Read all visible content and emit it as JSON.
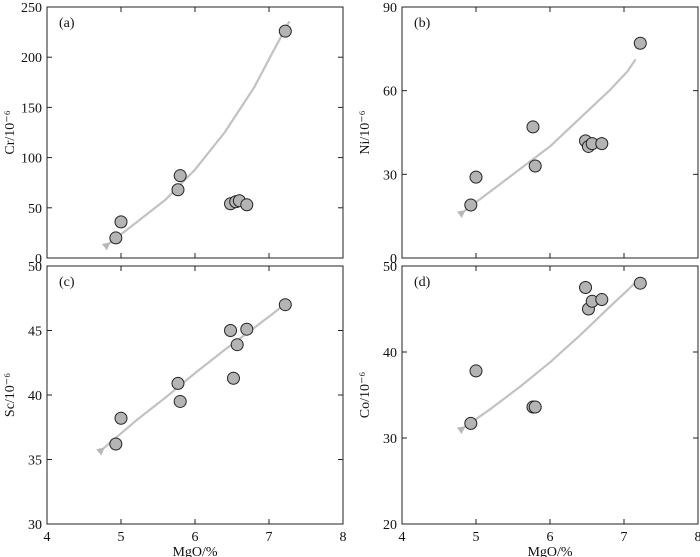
{
  "chart_data": [
    {
      "panel": "(a)",
      "type": "scatter",
      "xlabel": "",
      "ylabel": "Cr/10⁻⁶",
      "xlim": [
        4,
        8
      ],
      "ylim": [
        0,
        250
      ],
      "xticks": [],
      "yticks": [
        0,
        50,
        100,
        150,
        200,
        250
      ],
      "points": [
        {
          "x": 4.93,
          "y": 20
        },
        {
          "x": 5.0,
          "y": 36
        },
        {
          "x": 5.77,
          "y": 68
        },
        {
          "x": 5.8,
          "y": 82
        },
        {
          "x": 6.48,
          "y": 54
        },
        {
          "x": 6.55,
          "y": 56
        },
        {
          "x": 6.6,
          "y": 57
        },
        {
          "x": 6.7,
          "y": 53
        },
        {
          "x": 7.22,
          "y": 226
        }
      ],
      "trend": [
        [
          4.85,
          15
        ],
        [
          5.2,
          35
        ],
        [
          5.6,
          58
        ],
        [
          6.0,
          88
        ],
        [
          6.4,
          125
        ],
        [
          6.8,
          170
        ],
        [
          7.05,
          205
        ],
        [
          7.27,
          235
        ]
      ],
      "arrow": "start"
    },
    {
      "panel": "(b)",
      "type": "scatter",
      "xlabel": "",
      "ylabel": "Ni/10⁻⁶",
      "xlim": [
        4,
        8
      ],
      "ylim": [
        0,
        90
      ],
      "xticks": [],
      "yticks": [
        0,
        30,
        60,
        90
      ],
      "points": [
        {
          "x": 4.93,
          "y": 19
        },
        {
          "x": 5.0,
          "y": 29
        },
        {
          "x": 5.77,
          "y": 47
        },
        {
          "x": 5.8,
          "y": 33
        },
        {
          "x": 6.48,
          "y": 42
        },
        {
          "x": 6.52,
          "y": 40
        },
        {
          "x": 6.57,
          "y": 41
        },
        {
          "x": 6.7,
          "y": 41
        },
        {
          "x": 7.22,
          "y": 77
        }
      ],
      "trend": [
        [
          4.85,
          17
        ],
        [
          5.2,
          24
        ],
        [
          5.6,
          32
        ],
        [
          6.0,
          40
        ],
        [
          6.4,
          50
        ],
        [
          6.8,
          60
        ],
        [
          7.05,
          67
        ],
        [
          7.15,
          71
        ]
      ],
      "arrow": "start"
    },
    {
      "panel": "(c)",
      "type": "scatter",
      "xlabel": "MgO/%",
      "ylabel": "Sc/10⁻⁶",
      "xlim": [
        4,
        8
      ],
      "ylim": [
        30,
        50
      ],
      "xticks": [
        4,
        5,
        6,
        7,
        8
      ],
      "yticks": [
        30,
        35,
        40,
        45,
        50
      ],
      "points": [
        {
          "x": 4.93,
          "y": 36.2
        },
        {
          "x": 5.0,
          "y": 38.2
        },
        {
          "x": 5.77,
          "y": 40.9
        },
        {
          "x": 5.8,
          "y": 39.5
        },
        {
          "x": 6.48,
          "y": 45.0
        },
        {
          "x": 6.52,
          "y": 41.3
        },
        {
          "x": 6.57,
          "y": 43.9
        },
        {
          "x": 6.7,
          "y": 45.1
        },
        {
          "x": 7.22,
          "y": 47.0
        }
      ],
      "trend": [
        [
          4.77,
          35.9
        ],
        [
          5.2,
          38.0
        ],
        [
          5.6,
          39.8
        ],
        [
          6.0,
          41.7
        ],
        [
          6.4,
          43.5
        ],
        [
          6.8,
          45.2
        ],
        [
          7.05,
          46.3
        ],
        [
          7.25,
          47.2
        ]
      ],
      "arrow": "start"
    },
    {
      "panel": "(d)",
      "type": "scatter",
      "xlabel": "MgO/%",
      "ylabel": "Co/10⁻⁶",
      "xlim": [
        4,
        8
      ],
      "ylim": [
        20,
        50
      ],
      "xticks": [
        4,
        5,
        6,
        7,
        8
      ],
      "yticks": [
        20,
        30,
        40,
        50
      ],
      "points": [
        {
          "x": 4.93,
          "y": 31.7
        },
        {
          "x": 5.0,
          "y": 37.8
        },
        {
          "x": 5.77,
          "y": 33.6
        },
        {
          "x": 5.8,
          "y": 33.6
        },
        {
          "x": 6.48,
          "y": 47.5
        },
        {
          "x": 6.52,
          "y": 45.0
        },
        {
          "x": 6.57,
          "y": 45.9
        },
        {
          "x": 6.7,
          "y": 46.1
        },
        {
          "x": 7.22,
          "y": 48.0
        }
      ],
      "trend": [
        [
          4.85,
          31.3
        ],
        [
          5.2,
          33.4
        ],
        [
          5.6,
          36.0
        ],
        [
          6.0,
          38.8
        ],
        [
          6.4,
          41.9
        ],
        [
          6.8,
          45.2
        ],
        [
          7.05,
          47.2
        ],
        [
          7.18,
          48.3
        ]
      ],
      "arrow": "start"
    }
  ]
}
